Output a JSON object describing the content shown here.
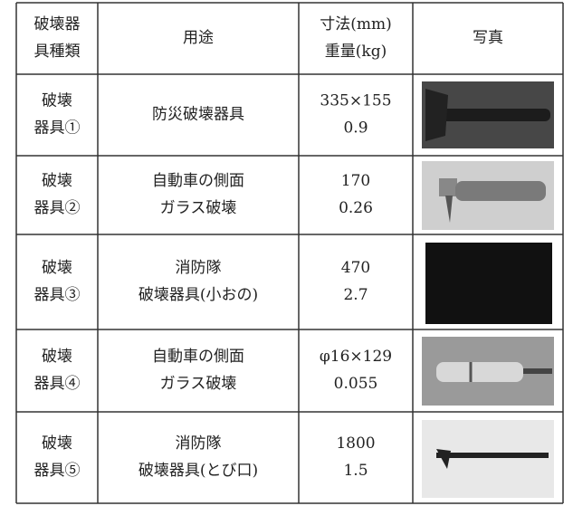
{
  "table": {
    "header": [
      [
        "破壊器",
        "具種類"
      ],
      [
        "用途"
      ],
      [
        "寸法(mm)",
        "重量(kg)"
      ],
      [
        "写真"
      ]
    ],
    "rows": [
      [
        [
          "破壊",
          "器具①"
        ],
        [
          "防災破壊器具"
        ],
        [
          "335×155",
          "0.9"
        ]
      ],
      [
        [
          "破壊",
          "器具②"
        ],
        [
          "自動車の側面",
          "ガラス破壊"
        ],
        [
          "170",
          "0.26"
        ]
      ],
      [
        [
          "破壊",
          "器具③"
        ],
        [
          "消防隊",
          "破壊器具(小おの)"
        ],
        [
          "470",
          "2.7"
        ]
      ],
      [
        [
          "破壊",
          "器具④"
        ],
        [
          "自動車の側面",
          "ガラス破壊"
        ],
        [
          "φ16×129",
          "0.055"
        ]
      ],
      [
        [
          "破壊",
          "器具⑤"
        ],
        [
          "消防隊",
          "破壊器具(とび口)"
        ],
        [
          "1800",
          "1.5"
        ]
      ]
    ]
  }
}
